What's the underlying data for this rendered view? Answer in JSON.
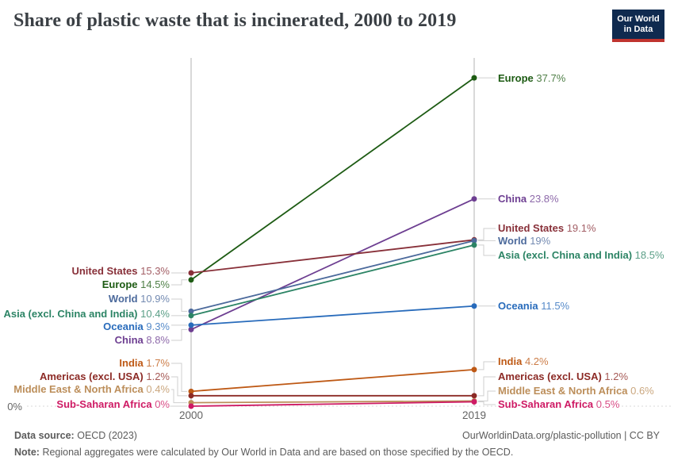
{
  "header": {
    "title": "Share of plastic waste that is incinerated, 2000 to 2019",
    "logo": {
      "line1": "Our World",
      "line2": "in Data"
    }
  },
  "chart_data": {
    "type": "line",
    "subtype": "slope",
    "x": [
      "2000",
      "2019"
    ],
    "ylim": [
      0,
      40
    ],
    "zero_label": "0%",
    "grid": "zero-line-only",
    "legend": "inline-labels",
    "series": [
      {
        "name": "Europe",
        "values": [
          14.5,
          37.7
        ],
        "display": [
          "14.5%",
          "37.7%"
        ],
        "color": "#1d5b13",
        "label_y": [
          359,
          99
        ]
      },
      {
        "name": "China",
        "values": [
          8.8,
          23.8
        ],
        "display": [
          "8.8%",
          "23.8%"
        ],
        "color": "#6d3e91",
        "label_y": [
          429,
          251
        ]
      },
      {
        "name": "United States",
        "values": [
          15.3,
          19.1
        ],
        "display": [
          "15.3%",
          "19.1%"
        ],
        "color": "#883039",
        "label_y": [
          342,
          288
        ]
      },
      {
        "name": "World",
        "values": [
          10.9,
          19.0
        ],
        "display": [
          "10.9%",
          "19%"
        ],
        "color": "#4c6a9c",
        "label_y": [
          377,
          304
        ]
      },
      {
        "name": "Asia (excl. China and India)",
        "values": [
          10.4,
          18.5
        ],
        "display": [
          "10.4%",
          "18.5%"
        ],
        "color": "#2c8465",
        "label_y": [
          396,
          322
        ]
      },
      {
        "name": "Oceania",
        "values": [
          9.3,
          11.5
        ],
        "display": [
          "9.3%",
          "11.5%"
        ],
        "color": "#286bbb",
        "label_y": [
          412,
          386
        ]
      },
      {
        "name": "India",
        "values": [
          1.7,
          4.2
        ],
        "display": [
          "1.7%",
          "4.2%"
        ],
        "color": "#be5915",
        "label_y": [
          458,
          456
        ]
      },
      {
        "name": "Americas (excl. USA)",
        "values": [
          1.2,
          1.2
        ],
        "display": [
          "1.2%",
          "1.2%"
        ],
        "color": "#8c2a25",
        "label_y": [
          475,
          475
        ]
      },
      {
        "name": "Middle East & North Africa",
        "values": [
          0.4,
          0.6
        ],
        "display": [
          "0.4%",
          "0.6%"
        ],
        "color": "#bc8e5a",
        "label_y": [
          491,
          493
        ]
      },
      {
        "name": "Sub-Saharan Africa",
        "values": [
          0.0,
          0.5
        ],
        "display": [
          "0%",
          "0.5%"
        ],
        "color": "#ce1a64",
        "label_y": [
          510,
          510
        ]
      }
    ]
  },
  "footer": {
    "source_label": "Data source:",
    "source_value": "OECD (2023)",
    "link": "OurWorldinData.org/plastic-pollution | CC BY",
    "note_label": "Note:",
    "note_text": "Regional aggregates were calculated by Our World in Data and are based on those specified by the OECD."
  }
}
